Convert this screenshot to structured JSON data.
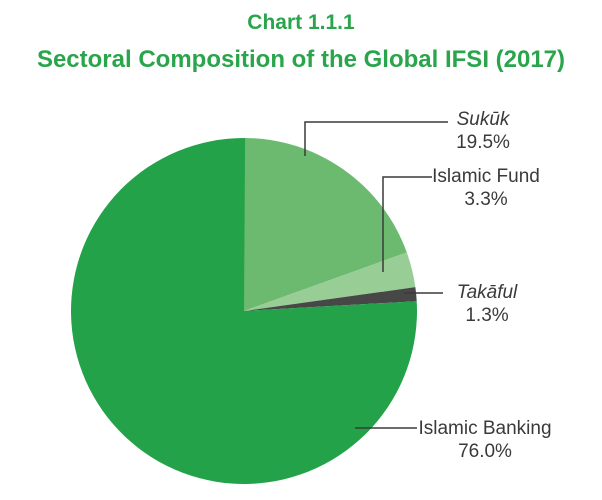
{
  "title": {
    "line1": "Chart 1.1.1",
    "line2": "Sectoral Composition of the Global IFSI (2017)"
  },
  "colors": {
    "title_green": "#2aa54c",
    "label_text": "#3a3a3a",
    "leader_line": "#3a3a3a",
    "background": "#ffffff"
  },
  "chart_data": {
    "type": "pie",
    "title": "Chart 1.1.1",
    "subtitle": "Sectoral Composition of the Global IFSI (2017)",
    "start_angle_deg": 0,
    "direction": "clockwise",
    "legend_position": "callout-labels-right",
    "slices": [
      {
        "id": "sukuk",
        "label": "Sukūk",
        "value": 19.5,
        "display": "19.5%",
        "color": "#6cba70",
        "italic": true
      },
      {
        "id": "islamic-fund",
        "label": "Islamic Fund",
        "value": 3.3,
        "display": "3.3%",
        "color": "#98cd96",
        "italic": false
      },
      {
        "id": "takaful",
        "label": "Takāful",
        "value": 1.3,
        "display": "1.3%",
        "color": "#474747",
        "italic": true
      },
      {
        "id": "islamic-banking",
        "label": "Islamic Banking",
        "value": 76.0,
        "display": "76.0%",
        "color": "#23a24a",
        "italic": false
      }
    ]
  }
}
